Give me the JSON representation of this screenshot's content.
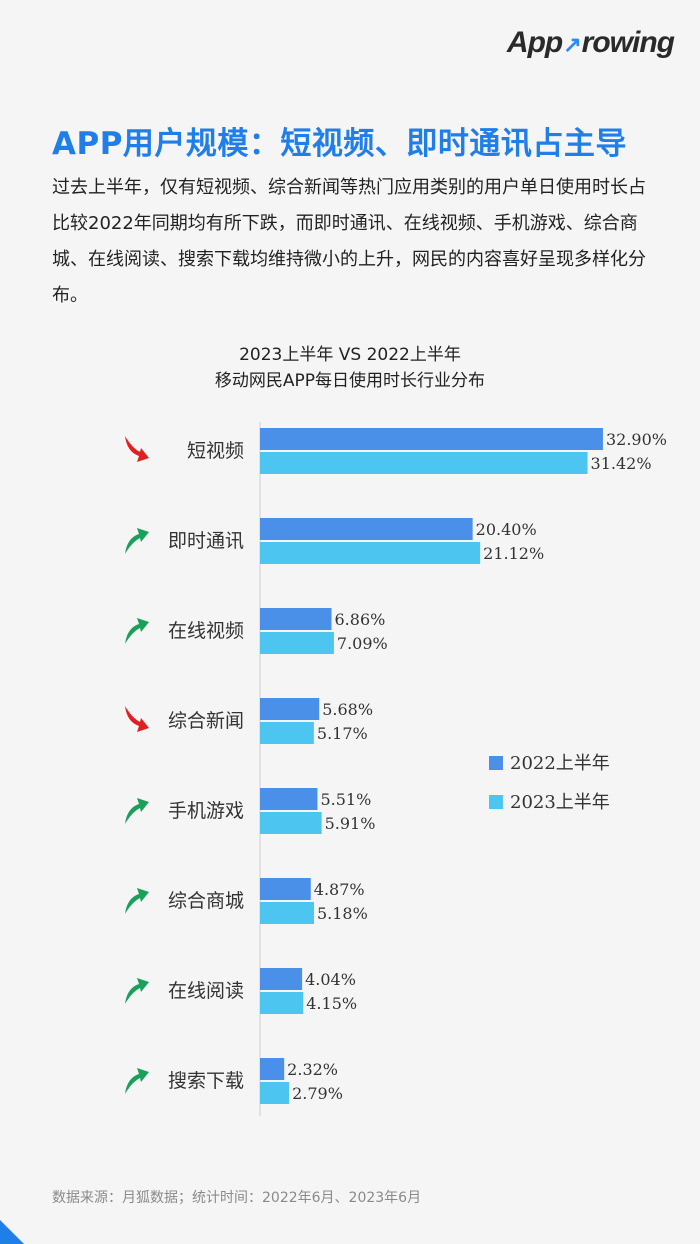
{
  "brand": {
    "logo_text_left": "App",
    "logo_text_right": "rowing"
  },
  "headline": "APP用户规模：短视频、即时通讯占主导",
  "description": "过去上半年，仅有短视频、综合新闻等热门应用类别的用户单日使用时长占比较2022年同期均有所下跌，而即时通讯、在线视频、手机游戏、综合商城、在线阅读、搜索下载均维持微小的上升，网民的内容喜好呈现多样化分布。",
  "source": "数据来源：月狐数据；统计时间：2022年6月、2023年6月",
  "colors": {
    "accent": "#1f7ee8",
    "series_2022": "#4a90e8",
    "series_2023": "#4cc6f0",
    "trend_up": "#1aa05a",
    "trend_down": "#e02020"
  },
  "chart_data": {
    "type": "bar",
    "orientation": "horizontal",
    "title": "2023上半年 VS 2022上半年",
    "subtitle": "移动网民APP每日使用时长行业分布",
    "categories": [
      "短视频",
      "即时通讯",
      "在线视频",
      "综合新闻",
      "手机游戏",
      "综合商城",
      "在线阅读",
      "搜索下载"
    ],
    "series": [
      {
        "name": "2022上半年",
        "values": [
          32.9,
          20.4,
          6.86,
          5.68,
          5.51,
          4.87,
          4.04,
          2.32
        ],
        "labels": [
          "32.90%",
          "20.40%",
          "6.86%",
          "5.68%",
          "5.51%",
          "4.87%",
          "4.04%",
          "2.32%"
        ]
      },
      {
        "name": "2023上半年",
        "values": [
          31.42,
          21.12,
          7.09,
          5.17,
          5.91,
          5.18,
          4.15,
          2.79
        ],
        "labels": [
          "31.42%",
          "21.12%",
          "7.09%",
          "5.17%",
          "5.91%",
          "5.18%",
          "4.15%",
          "2.79%"
        ]
      }
    ],
    "trend_icons": [
      "down-arrow-icon",
      "up-arrow-icon",
      "up-arrow-icon",
      "down-arrow-icon",
      "up-arrow-icon",
      "up-arrow-icon",
      "up-arrow-icon",
      "up-arrow-icon"
    ],
    "xlim": [
      0,
      40
    ],
    "grid": false,
    "legend": "right"
  }
}
